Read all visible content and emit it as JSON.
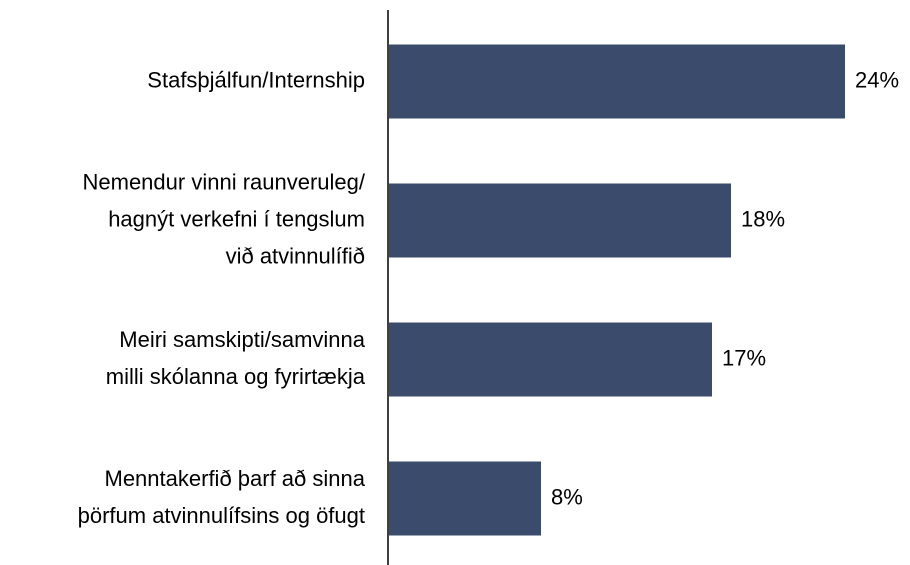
{
  "chart_data": {
    "type": "bar",
    "orientation": "horizontal",
    "categories": [
      [
        "Stafsþjálfun/Internship"
      ],
      [
        "Nemendur vinni raunveruleg/",
        "hagnýt verkefni í tengslum",
        "við atvinnulífið"
      ],
      [
        "Meiri samskipti/samvinna",
        "milli skólanna og fyrirtækja"
      ],
      [
        "Menntakerfið þarf að sinna",
        "þörfum atvinnulífsins og öfugt"
      ]
    ],
    "values": [
      24,
      18,
      17,
      8
    ],
    "value_labels": [
      "24%",
      "18%",
      "17%",
      "8%"
    ],
    "color": "#3a4b6b"
  }
}
